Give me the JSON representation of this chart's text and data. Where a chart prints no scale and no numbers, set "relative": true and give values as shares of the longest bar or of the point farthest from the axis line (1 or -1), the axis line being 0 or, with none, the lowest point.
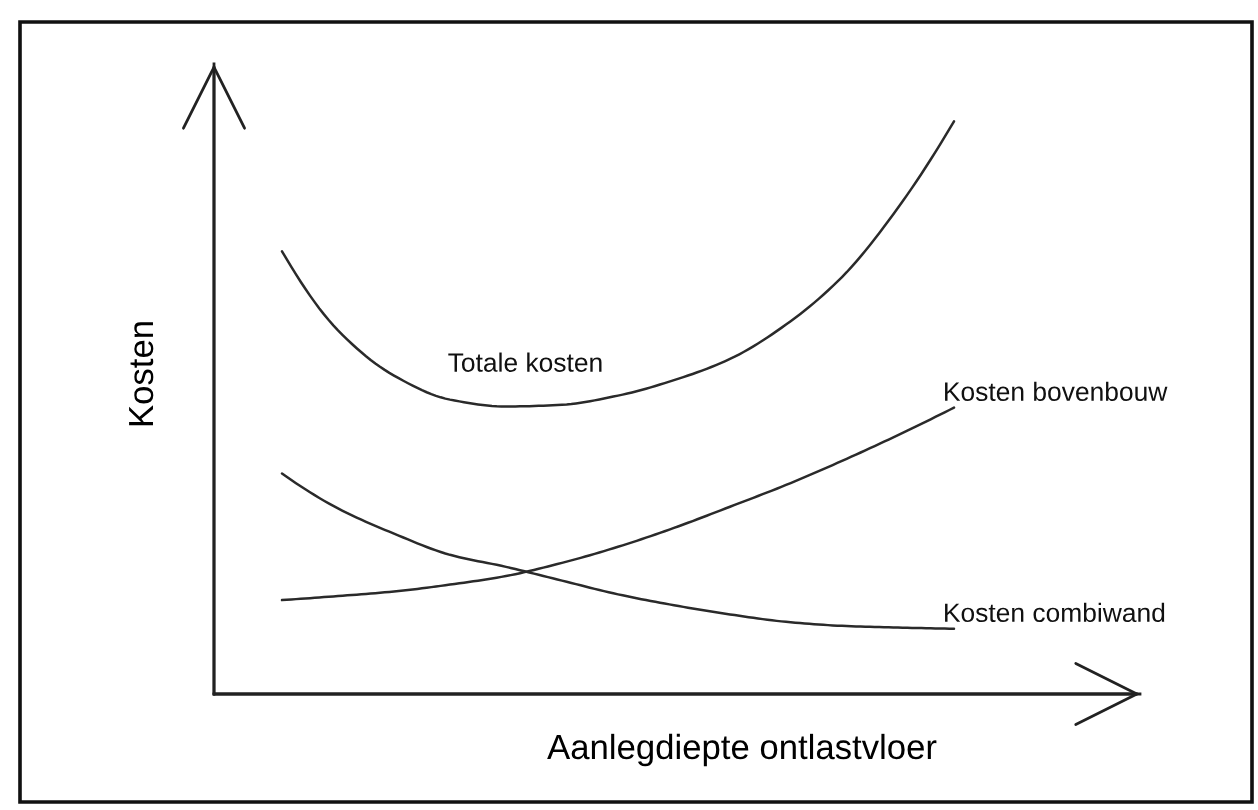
{
  "chart_data": {
    "type": "line",
    "relative": true,
    "xlabel": "Aanlegdiepte ontlastvloer",
    "ylabel": "Kosten",
    "categories": [
      null,
      null,
      null,
      null,
      null,
      null,
      null,
      null,
      null,
      null,
      null,
      null,
      null
    ],
    "series": [
      {
        "name": "Totale kosten",
        "color": "#2a2a2a",
        "values": [
          0.773,
          0.635,
          0.556,
          0.514,
          0.502,
          0.505,
          0.521,
          0.548,
          0.585,
          0.645,
          0.728,
          0.849,
          1.0
        ]
      },
      {
        "name": "Kosten bovenbouw",
        "color": "#2a2a2a",
        "values": [
          0.164,
          0.171,
          0.179,
          0.191,
          0.206,
          0.229,
          0.257,
          0.29,
          0.327,
          0.365,
          0.407,
          0.452,
          0.5
        ]
      },
      {
        "name": "Kosten combiwand",
        "color": "#2a2a2a",
        "values": [
          0.385,
          0.324,
          0.28,
          0.243,
          0.222,
          0.198,
          0.174,
          0.155,
          0.139,
          0.126,
          0.119,
          0.116,
          0.114
        ]
      }
    ]
  }
}
